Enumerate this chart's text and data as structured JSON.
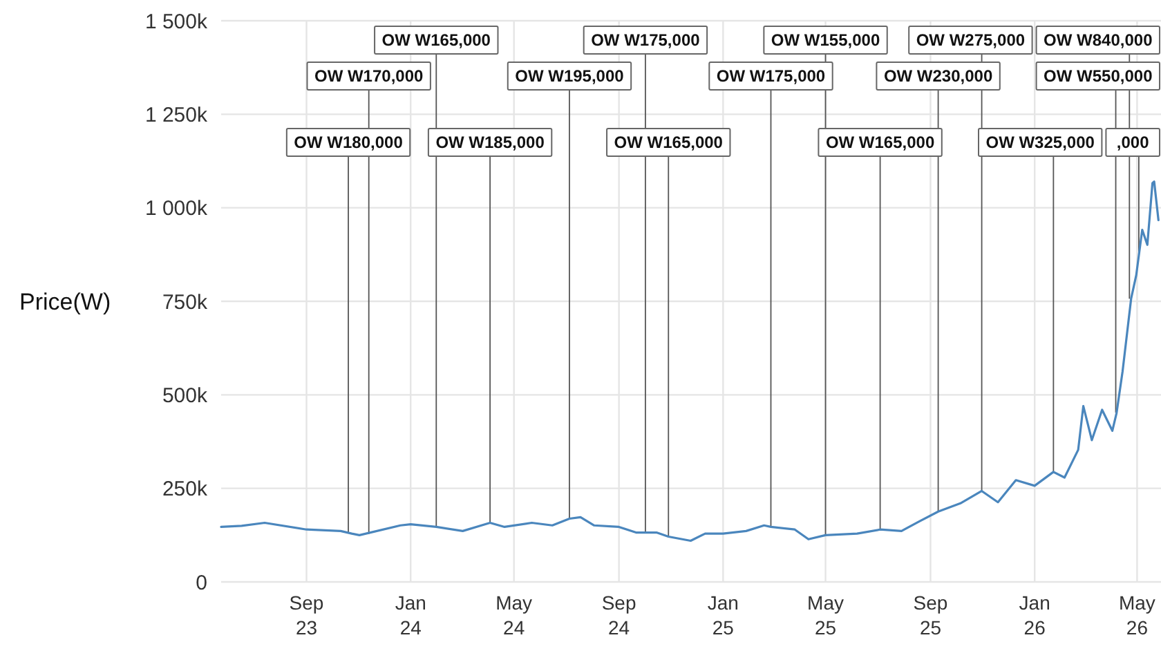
{
  "chart_data": {
    "type": "line",
    "ylabel": "Price(W)",
    "xlim": [
      "2023-05-24",
      "2026-05-29"
    ],
    "xticks": [
      {
        "value": "2023-09-01",
        "label": "Sep\n23"
      },
      {
        "value": "2024-01-01",
        "label": "Jan\n24"
      },
      {
        "value": "2024-05-01",
        "label": "May\n24"
      },
      {
        "value": "2024-09-01",
        "label": "Sep\n24"
      },
      {
        "value": "2025-01-01",
        "label": "Jan\n25"
      },
      {
        "value": "2025-05-01",
        "label": "May\n25"
      },
      {
        "value": "2025-09-01",
        "label": "Sep\n25"
      },
      {
        "value": "2026-01-01",
        "label": "Jan\n26"
      },
      {
        "value": "2026-05-01",
        "label": "May\n26"
      }
    ],
    "ylim": [
      0,
      1500000
    ],
    "yticks": [
      0,
      {
        "value": 250000,
        "label": "250k"
      },
      {
        "value": 500000,
        "label": "500k"
      },
      {
        "value": 750000,
        "label": "750k"
      },
      {
        "value": 1000000,
        "label": "1 000k"
      },
      {
        "value": 1250000,
        "label": "1 250k"
      },
      {
        "value": 1500000,
        "label": "1 500k"
      }
    ],
    "grid": true,
    "series": [
      {
        "color": "#4a86bd",
        "x": [
          "2023-05-24",
          "2023-06-17",
          "2023-07-14",
          "2023-09-01",
          "2023-10-11",
          "2023-10-24",
          "2023-11-02",
          "2023-12-20",
          "2024-01-01",
          "2024-01-31",
          "2024-03-02",
          "2024-04-03",
          "2024-04-20",
          "2024-05-22",
          "2024-06-15",
          "2024-07-05",
          "2024-07-18",
          "2024-08-03",
          "2024-09-01",
          "2024-09-21",
          "2024-10-15",
          "2024-10-29",
          "2024-11-24",
          "2024-12-11",
          "2025-01-01",
          "2025-01-28",
          "2025-02-18",
          "2025-02-26",
          "2025-03-26",
          "2025-04-11",
          "2025-05-01",
          "2025-06-07",
          "2025-07-04",
          "2025-07-29",
          "2025-08-19",
          "2025-09-10",
          "2025-10-06",
          "2025-10-31",
          "2025-11-19",
          "2025-12-10",
          "2026-01-01",
          "2026-01-23",
          "2026-02-05",
          "2026-02-21",
          "2026-02-27",
          "2026-03-09",
          "2026-03-21",
          "2026-04-02",
          "2026-04-07",
          "2026-04-14",
          "2026-04-24",
          "2026-04-30",
          "2026-05-07",
          "2026-05-13",
          "2026-05-19",
          "2026-05-21",
          "2026-05-26"
        ],
        "values": [
          147000,
          150000,
          158000,
          140000,
          136000,
          129000,
          125000,
          151000,
          154000,
          147000,
          136000,
          158000,
          147000,
          158000,
          151000,
          169000,
          173000,
          151000,
          147000,
          132000,
          132000,
          121000,
          110000,
          129000,
          129000,
          136000,
          151000,
          147000,
          140000,
          114000,
          125000,
          129000,
          140000,
          136000,
          162000,
          188000,
          210000,
          243000,
          213000,
          272000,
          257000,
          294000,
          279000,
          353000,
          470000,
          379000,
          460000,
          404000,
          452000,
          563000,
          757000,
          820000,
          941000,
          901000,
          1066000,
          1070000,
          967000
        ]
      }
    ],
    "annotations": [
      {
        "text": "OW W180,000",
        "x": "2023-10-20",
        "y": 130000
      },
      {
        "text": "OW W170,000",
        "x": "2023-11-13",
        "y": 128000
      },
      {
        "text": "OW W165,000",
        "x": "2024-01-31",
        "y": 147000
      },
      {
        "text": "OW W185,000",
        "x": "2024-04-03",
        "y": 158000
      },
      {
        "text": "OW W195,000",
        "x": "2024-07-05",
        "y": 169000
      },
      {
        "text": "OW W175,000",
        "x": "2024-10-02",
        "y": 132000
      },
      {
        "text": "OW W165,000",
        "x": "2024-10-29",
        "y": 121000
      },
      {
        "text": "OW W175,000",
        "x": "2025-02-26",
        "y": 147000
      },
      {
        "text": "OW W155,000",
        "x": "2025-05-01",
        "y": 125000
      },
      {
        "text": "OW W165,000",
        "x": "2025-07-04",
        "y": 140000
      },
      {
        "text": "OW W230,000",
        "x": "2025-09-10",
        "y": 188000
      },
      {
        "text": "OW W275,000",
        "x": "2025-10-31",
        "y": 243000
      },
      {
        "text": "OW W325,000",
        "x": "2026-01-23",
        "y": 294000
      },
      {
        "text": "OW W550,000",
        "x": "2026-04-06",
        "y": 452000
      },
      {
        "text": "OW W840,000",
        "x": "2026-04-22",
        "y": 757000
      },
      {
        "text": ",000",
        "x": "2026-05-03",
        "y": 880000
      }
    ]
  }
}
